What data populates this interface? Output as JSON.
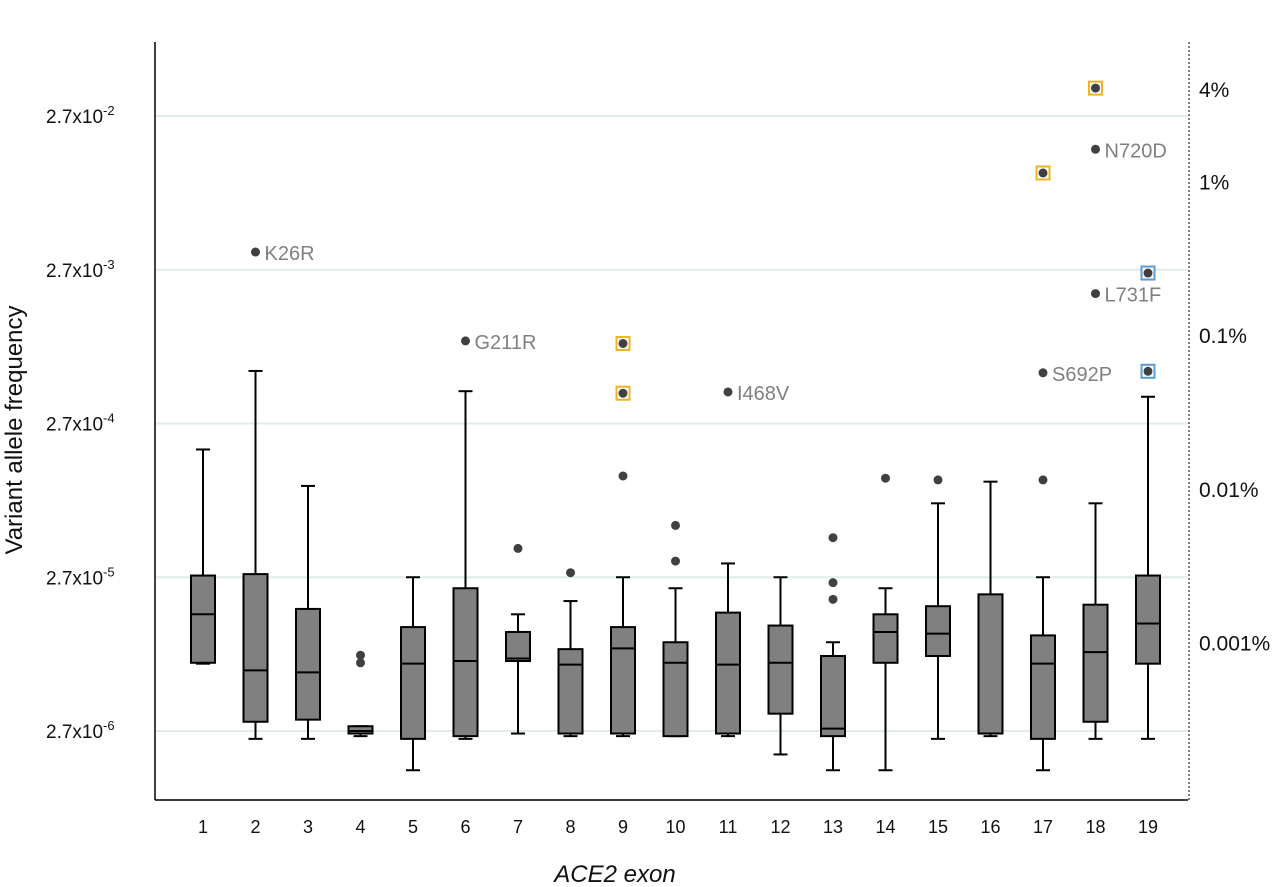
{
  "chart_data": {
    "type": "box",
    "xlabel": "ACE2 exon",
    "ylabel": "Variant allele frequency",
    "y_scale": "log",
    "ylim": [
      7.5e-07,
      0.05
    ],
    "grid": "horizontal",
    "y_ticks": [
      {
        "value": 2.7e-06,
        "label": "2.7x10",
        "exp": "-6"
      },
      {
        "value": 2.7e-05,
        "label": "2.7x10",
        "exp": "-5"
      },
      {
        "value": 0.00027,
        "label": "2.7x10",
        "exp": "-4"
      },
      {
        "value": 0.0027,
        "label": "2.7x10",
        "exp": "-3"
      },
      {
        "value": 0.027,
        "label": "2.7x10",
        "exp": "-2"
      }
    ],
    "secondary_y_ticks": [
      {
        "value": 0.04,
        "label": "4%"
      },
      {
        "value": 0.01,
        "label": "1%"
      },
      {
        "value": 0.001,
        "label": "0.1%"
      },
      {
        "value": 0.0001,
        "label": "0.01%"
      },
      {
        "value": 1e-05,
        "label": "0.001%"
      }
    ],
    "categories": [
      "1",
      "2",
      "3",
      "4",
      "5",
      "6",
      "7",
      "8",
      "9",
      "10",
      "11",
      "12",
      "13",
      "14",
      "15",
      "16",
      "17",
      "18",
      "19"
    ],
    "boxes": [
      {
        "min": 7.4e-06,
        "q1": 7.5e-06,
        "median": 1.55e-05,
        "q3": 2.77e-05,
        "max": 0.000183
      },
      {
        "min": 2.4e-06,
        "q1": 3.1e-06,
        "median": 6.7e-06,
        "q3": 2.83e-05,
        "max": 0.000593
      },
      {
        "min": 2.4e-06,
        "q1": 3.2e-06,
        "median": 6.5e-06,
        "q3": 1.68e-05,
        "max": 0.000106
      },
      {
        "min": 2.5e-06,
        "q1": 2.6e-06,
        "median": 2.7e-06,
        "q3": 2.9e-06,
        "max": 2.9e-06
      },
      {
        "min": 1.5e-06,
        "q1": 2.4e-06,
        "median": 7.4e-06,
        "q3": 1.28e-05,
        "max": 2.7e-05
      },
      {
        "min": 2.4e-06,
        "q1": 2.5e-06,
        "median": 7.7e-06,
        "q3": 2.29e-05,
        "max": 0.000438
      },
      {
        "min": 2.6e-06,
        "q1": 7.7e-06,
        "median": 8e-06,
        "q3": 1.19e-05,
        "max": 1.55e-05
      },
      {
        "min": 2.5e-06,
        "q1": 2.6e-06,
        "median": 7.3e-06,
        "q3": 9.2e-06,
        "max": 1.89e-05
      },
      {
        "min": 2.5e-06,
        "q1": 2.6e-06,
        "median": 9.3e-06,
        "q3": 1.28e-05,
        "max": 2.7e-05
      },
      {
        "min": 2.5e-06,
        "q1": 2.5e-06,
        "median": 7.5e-06,
        "q3": 1.02e-05,
        "max": 2.29e-05
      },
      {
        "min": 2.5e-06,
        "q1": 2.6e-06,
        "median": 7.3e-06,
        "q3": 1.59e-05,
        "max": 3.32e-05
      },
      {
        "min": 1.9e-06,
        "q1": 3.5e-06,
        "median": 7.5e-06,
        "q3": 1.31e-05,
        "max": 2.7e-05
      },
      {
        "min": 1.5e-06,
        "q1": 2.5e-06,
        "median": 2.8e-06,
        "q3": 8.3e-06,
        "max": 1.02e-05
      },
      {
        "min": 1.5e-06,
        "q1": 7.5e-06,
        "median": 1.19e-05,
        "q3": 1.55e-05,
        "max": 2.29e-05
      },
      {
        "min": 2.4e-06,
        "q1": 8.3e-06,
        "median": 1.16e-05,
        "q3": 1.75e-05,
        "max": 8.17e-05
      },
      {
        "min": 2.5e-06,
        "q1": 2.6e-06,
        "median": 2.6e-06,
        "q3": 2.09e-05,
        "max": 0.000113
      },
      {
        "min": 1.5e-06,
        "q1": 2.4e-06,
        "median": 7.4e-06,
        "q3": 1.13e-05,
        "max": 2.7e-05
      },
      {
        "min": 2.4e-06,
        "q1": 3.1e-06,
        "median": 8.8e-06,
        "q3": 1.79e-05,
        "max": 8.17e-05
      },
      {
        "min": 2.4e-06,
        "q1": 7.4e-06,
        "median": 1.35e-05,
        "q3": 2.77e-05,
        "max": 0.000403
      }
    ],
    "outliers": [
      {
        "exon": "2",
        "y": 0.00352,
        "label": "K26R",
        "highlight": ""
      },
      {
        "exon": "4",
        "y": 8.4e-06,
        "label": "",
        "highlight": ""
      },
      {
        "exon": "4",
        "y": 7.5e-06,
        "label": "",
        "highlight": ""
      },
      {
        "exon": "6",
        "y": 0.00093,
        "label": "G211R",
        "highlight": ""
      },
      {
        "exon": "7",
        "y": 4.16e-05,
        "label": "",
        "highlight": ""
      },
      {
        "exon": "8",
        "y": 2.89e-05,
        "label": "",
        "highlight": ""
      },
      {
        "exon": "9",
        "y": 0.000895,
        "label": "",
        "highlight": "yellow"
      },
      {
        "exon": "9",
        "y": 0.000425,
        "label": "",
        "highlight": "yellow"
      },
      {
        "exon": "9",
        "y": 0.000123,
        "label": "",
        "highlight": ""
      },
      {
        "exon": "10",
        "y": 5.87e-05,
        "label": "",
        "highlight": ""
      },
      {
        "exon": "10",
        "y": 3.44e-05,
        "label": "",
        "highlight": ""
      },
      {
        "exon": "11",
        "y": 0.000433,
        "label": "I468V",
        "highlight": ""
      },
      {
        "exon": "13",
        "y": 4.88e-05,
        "label": "",
        "highlight": ""
      },
      {
        "exon": "13",
        "y": 2.49e-05,
        "label": "",
        "highlight": ""
      },
      {
        "exon": "13",
        "y": 1.94e-05,
        "label": "",
        "highlight": ""
      },
      {
        "exon": "14",
        "y": 0.000119,
        "label": "",
        "highlight": ""
      },
      {
        "exon": "15",
        "y": 0.000116,
        "label": "",
        "highlight": ""
      },
      {
        "exon": "17",
        "y": 0.0115,
        "label": "",
        "highlight": "yellow"
      },
      {
        "exon": "17",
        "y": 0.000577,
        "label": "S692P",
        "highlight": ""
      },
      {
        "exon": "17",
        "y": 0.000116,
        "label": "",
        "highlight": ""
      },
      {
        "exon": "18",
        "y": 0.041,
        "label": "",
        "highlight": "yellow"
      },
      {
        "exon": "18",
        "y": 0.0164,
        "label": "N720D",
        "highlight": ""
      },
      {
        "exon": "18",
        "y": 0.00189,
        "label": "L731F",
        "highlight": ""
      },
      {
        "exon": "19",
        "y": 0.00257,
        "label": "",
        "highlight": "blue"
      },
      {
        "exon": "19",
        "y": 0.00059,
        "label": "",
        "highlight": "blue"
      }
    ],
    "colors": {
      "box_fill": "#808080",
      "box_stroke": "#000000",
      "point": "#404040",
      "annotation_text": "#808080",
      "grid": "#dfeceb",
      "highlight_yellow": "#f0b323",
      "highlight_blue": "#5b9bd5"
    }
  }
}
